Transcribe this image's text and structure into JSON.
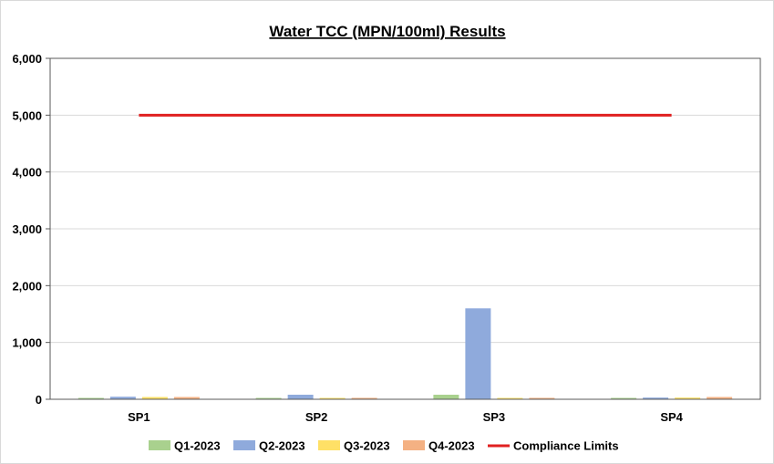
{
  "chart_data": {
    "type": "bar",
    "title": "Water TCC (MPN/100ml) Results",
    "xlabel": "",
    "ylabel": "",
    "categories": [
      "SP1",
      "SP2",
      "SP3",
      "SP4"
    ],
    "ylim": [
      0,
      6000
    ],
    "yticks": [
      0,
      1000,
      2000,
      3000,
      4000,
      5000,
      6000
    ],
    "ytick_labels": [
      "0",
      "1,000",
      "2,000",
      "3,000",
      "4,000",
      "5,000",
      "6,000"
    ],
    "grid": true,
    "legend_position": "bottom",
    "series": [
      {
        "name": "Q1-2023",
        "color": "#a9d18e",
        "values": [
          20,
          15,
          80,
          15
        ]
      },
      {
        "name": "Q2-2023",
        "color": "#8faadc",
        "values": [
          45,
          80,
          1600,
          30
        ]
      },
      {
        "name": "Q3-2023",
        "color": "#ffe066",
        "values": [
          40,
          10,
          20,
          30
        ]
      },
      {
        "name": "Q4-2023",
        "color": "#f4b183",
        "values": [
          40,
          25,
          25,
          40
        ]
      }
    ],
    "line_series": {
      "name": "Compliance Limits",
      "color": "#e02020",
      "values": [
        5000,
        5000,
        5000,
        5000
      ]
    }
  }
}
